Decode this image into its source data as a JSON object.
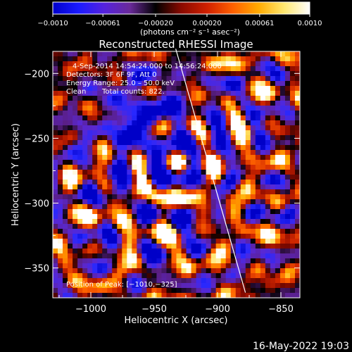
{
  "chart_data": {
    "type": "heatmap",
    "title": "Reconstructed RHESSI Image",
    "xlabel": "Heliocentric X (arcsec)",
    "ylabel": "Heliocentric Y (arcsec)",
    "xlim": [
      -1030,
      -835
    ],
    "ylim": [
      -373,
      -183
    ],
    "x_ticks": [
      -1000,
      -950,
      -900,
      -850
    ],
    "x_tick_labels": [
      "−1000",
      "−950",
      "−900",
      "−850"
    ],
    "y_ticks": [
      -200,
      -250,
      -300,
      -350
    ],
    "y_tick_labels": [
      "−200",
      "−250",
      "−300",
      "−350"
    ],
    "colorbar": {
      "min": -0.001,
      "max": 0.001,
      "tick_values": [
        -0.001,
        -0.00061,
        -0.0002,
        0.0002,
        0.00061,
        0.001
      ],
      "tick_labels": [
        "−0.0010",
        "−0.00061",
        "−0.00020",
        "0.00020",
        "0.00061",
        "0.0010"
      ],
      "unit_label": "(photons cm⁻² s⁻¹ asec⁻²)",
      "colors": [
        "#0000cc",
        "#1a1aff",
        "#5522dd",
        "#6a2a9a",
        "#000000",
        "#8a0a00",
        "#d02000",
        "#ff6000",
        "#ffaa00",
        "#ffe870",
        "#ffffff"
      ]
    },
    "annotations": {
      "time_range": "4-Sep-2014 14:54:24.000 to 14:56:24.000",
      "detectors": "Detectors: 3F 6F 9F, Att 0",
      "energy_range": "Energy Range: 25.0 – 50.0 keV",
      "method": "Clean",
      "total_counts": "Total counts: 822.",
      "peak_position": "Position of Peak: [−1010,−325]"
    },
    "limb_line": [
      [
        -933,
        -181
      ],
      [
        -878,
        -369
      ]
    ],
    "footer": "16-May-2022 19:03"
  }
}
